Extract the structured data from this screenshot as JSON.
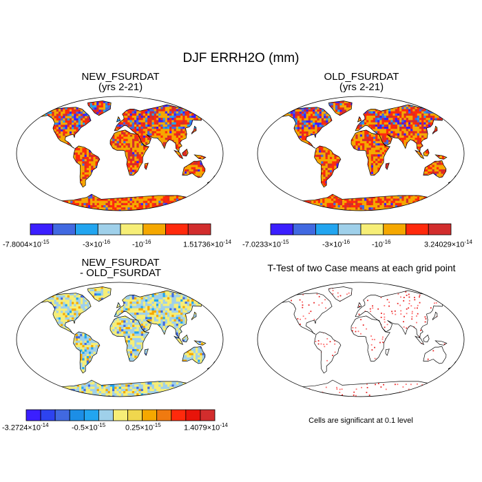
{
  "figure": {
    "title": "DJF ERRH2O (mm)"
  },
  "panels": [
    {
      "title_line1": "NEW_FSURDAT",
      "title_line2": "(yrs 2-21)",
      "scheme": "warm",
      "colorbar": {
        "colors": [
          "#3b1fff",
          "#4169e1",
          "#22a5f0",
          "#9fd0ea",
          "#f6ee77",
          "#f5a800",
          "#ff2a0c",
          "#d22d2d"
        ],
        "labels": [
          {
            "mant": "-7.8004×10",
            "exp": "-15"
          },
          {
            "mant": "-3×10",
            "exp": "-16"
          },
          {
            "mant": "-10",
            "exp": "-16"
          },
          {
            "mant": "1.51736×10",
            "exp": "-14"
          }
        ]
      }
    },
    {
      "title_line1": "OLD_FSURDAT",
      "title_line2": "(yrs 2-21)",
      "scheme": "warm",
      "colorbar": {
        "colors": [
          "#3b1fff",
          "#4169e1",
          "#22a5f0",
          "#9fd0ea",
          "#f6ee77",
          "#f5a800",
          "#ff2a0c",
          "#d22d2d"
        ],
        "labels": [
          {
            "mant": "-7.0233×10",
            "exp": "-15"
          },
          {
            "mant": "-3×10",
            "exp": "-16"
          },
          {
            "mant": "-10",
            "exp": "-16"
          },
          {
            "mant": "3.24029×10",
            "exp": "-14"
          }
        ]
      }
    },
    {
      "title_line1": "NEW_FSURDAT",
      "title_line2": "- OLD_FSURDAT",
      "scheme": "diff",
      "colorbar": {
        "colors": [
          "#3b1fff",
          "#2d43f0",
          "#4169e1",
          "#1c8ee6",
          "#22a5f0",
          "#9fd0ea",
          "#f6ee77",
          "#f0d74e",
          "#f5a800",
          "#f07a10",
          "#ff2a0c",
          "#e8140a",
          "#d22d2d"
        ],
        "labels": [
          {
            "mant": "-3.2724×10",
            "exp": "-14"
          },
          {
            "mant": "-0.5×10",
            "exp": "-15"
          },
          {
            "mant": "0.25×10",
            "exp": "-15"
          },
          {
            "mant": "1.4079×10",
            "exp": "-14"
          }
        ]
      }
    },
    {
      "title_line1": "T-Test of two Case means at each grid point",
      "title_line2": "",
      "scheme": "ttest",
      "note": "Cells are significant at 0.1 level"
    }
  ]
}
